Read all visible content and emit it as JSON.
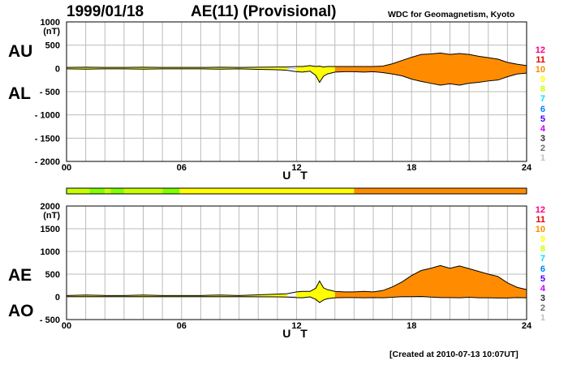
{
  "header": {
    "date": "1999/01/18",
    "title": "AE(11) (Provisional)",
    "source": "WDC for Geomagnetism, Kyoto"
  },
  "footer": {
    "created": "[Created at 2010-07-13 10:07UT]"
  },
  "labels": {
    "au": "AU",
    "al": "AL",
    "ae": "AE",
    "ao": "AO",
    "ut": "U T",
    "unit": "(nT)"
  },
  "legend": {
    "items": [
      "12",
      "11",
      "10",
      "9",
      "8",
      "7",
      "6",
      "5",
      "4",
      "3",
      "2",
      "1"
    ],
    "colors": [
      "#ff0080",
      "#e00000",
      "#ff8c00",
      "#ffff00",
      "#c8ff00",
      "#00e0ff",
      "#0080ff",
      "#4000ff",
      "#c000ff",
      "#303030",
      "#707070",
      "#c0c0c0"
    ]
  },
  "colors": {
    "yellow": "#ffff00",
    "orange": "#ff8c00",
    "green": "#7fff00",
    "greenyellow": "#c8ff00",
    "grid": "#bbbbbb"
  },
  "chart_data": [
    {
      "type": "area",
      "name": "AU/AL",
      "x_ticks": [
        "00",
        "06",
        "12",
        "18",
        "24"
      ],
      "xlim": [
        0,
        24
      ],
      "ylim": [
        -2000,
        1000
      ],
      "y_ticks": [
        "1000",
        "500",
        "0",
        "- 500",
        "- 1000",
        "- 1500",
        "- 2000"
      ],
      "y_tick_values": [
        1000,
        500,
        0,
        -500,
        -1000,
        -1500,
        -2000
      ],
      "x": [
        0,
        1,
        2,
        3,
        4,
        5,
        6,
        7,
        8,
        9,
        10,
        11,
        11.5,
        12,
        12.3,
        12.7,
        13,
        13.2,
        13.4,
        13.6,
        14,
        14.5,
        15,
        15.5,
        16,
        16.5,
        17,
        17.5,
        18,
        18.5,
        19,
        19.5,
        20,
        20.5,
        21,
        21.5,
        22,
        22.5,
        23,
        23.5,
        24
      ],
      "au": [
        20,
        25,
        20,
        20,
        25,
        20,
        20,
        20,
        25,
        20,
        25,
        30,
        30,
        40,
        40,
        60,
        40,
        50,
        30,
        40,
        40,
        40,
        40,
        40,
        40,
        50,
        100,
        170,
        240,
        300,
        310,
        330,
        300,
        320,
        300,
        260,
        230,
        200,
        130,
        90,
        60
      ],
      "al": [
        -10,
        -15,
        -10,
        -10,
        -15,
        -10,
        -10,
        -10,
        -15,
        -10,
        -20,
        -30,
        -40,
        -70,
        -80,
        -60,
        -150,
        -300,
        -170,
        -120,
        -80,
        -70,
        -70,
        -80,
        -70,
        -90,
        -120,
        -160,
        -230,
        -280,
        -320,
        -360,
        -330,
        -360,
        -320,
        -300,
        -270,
        -250,
        -180,
        -120,
        -100
      ]
    },
    {
      "type": "area",
      "name": "AE/AO",
      "x_ticks": [
        "00",
        "06",
        "12",
        "18",
        "24"
      ],
      "xlim": [
        0,
        24
      ],
      "ylim": [
        -500,
        2000
      ],
      "y_ticks": [
        "2000",
        "1500",
        "1000",
        "500",
        "0",
        "- 500"
      ],
      "y_tick_values": [
        2000,
        1500,
        1000,
        500,
        0,
        -500
      ],
      "x": [
        0,
        1,
        2,
        3,
        4,
        5,
        6,
        7,
        8,
        9,
        10,
        11,
        11.5,
        12,
        12.3,
        12.7,
        13,
        13.2,
        13.4,
        13.6,
        14,
        14.5,
        15,
        15.5,
        16,
        16.5,
        17,
        17.5,
        18,
        18.5,
        19,
        19.5,
        20,
        20.5,
        21,
        21.5,
        22,
        22.5,
        23,
        23.5,
        24
      ],
      "ae": [
        30,
        40,
        30,
        30,
        40,
        30,
        30,
        30,
        40,
        30,
        45,
        60,
        70,
        110,
        120,
        120,
        190,
        350,
        200,
        160,
        120,
        110,
        110,
        120,
        110,
        140,
        220,
        330,
        470,
        580,
        630,
        690,
        630,
        680,
        620,
        560,
        500,
        450,
        310,
        210,
        160
      ],
      "ao": [
        5,
        5,
        5,
        5,
        5,
        5,
        5,
        5,
        5,
        5,
        2,
        0,
        -5,
        -15,
        -20,
        0,
        -55,
        -125,
        -70,
        -40,
        -20,
        -15,
        -15,
        -20,
        -15,
        -20,
        -10,
        5,
        5,
        10,
        -5,
        -15,
        -15,
        -20,
        -10,
        -20,
        -20,
        -25,
        -25,
        -15,
        -20
      ]
    }
  ],
  "activity_bar": [
    {
      "from": 0,
      "to": 1.2,
      "c": "greenyellow"
    },
    {
      "from": 1.2,
      "to": 2.0,
      "c": "green"
    },
    {
      "from": 2.0,
      "to": 2.3,
      "c": "greenyellow"
    },
    {
      "from": 2.3,
      "to": 3.0,
      "c": "green"
    },
    {
      "from": 3.0,
      "to": 5.0,
      "c": "greenyellow"
    },
    {
      "from": 5.0,
      "to": 5.9,
      "c": "green"
    },
    {
      "from": 5.9,
      "to": 15.0,
      "c": "yellow"
    },
    {
      "from": 15.0,
      "to": 24.0,
      "c": "orange"
    }
  ],
  "segments": [
    {
      "from": 0,
      "to": 11.6,
      "c": "yellow"
    },
    {
      "from": 11.6,
      "to": 11.9,
      "c": "yellow"
    },
    {
      "from": 11.9,
      "to": 14.0,
      "c": "yellow"
    },
    {
      "from": 14.0,
      "to": 24.0,
      "c": "orange"
    }
  ]
}
